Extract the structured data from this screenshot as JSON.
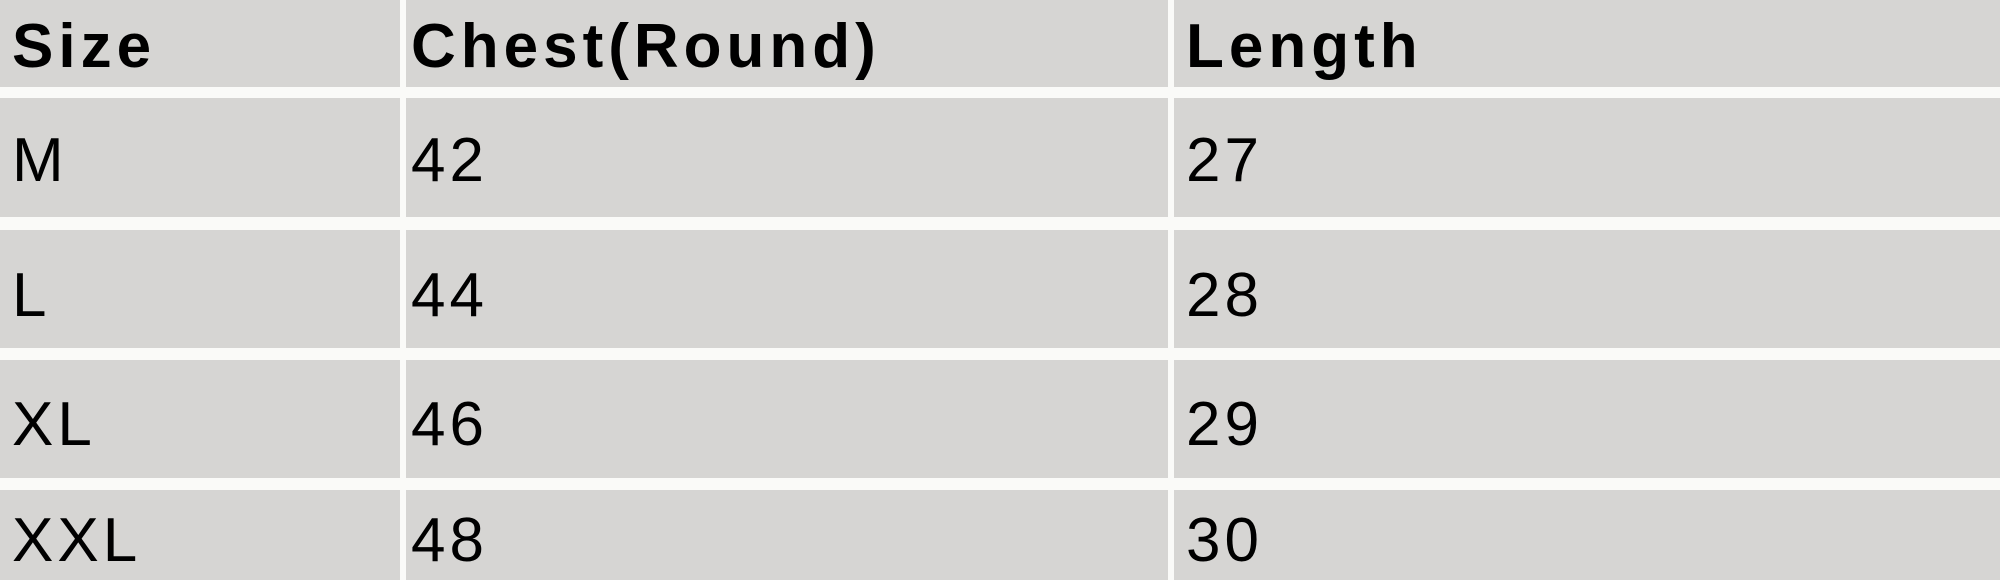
{
  "table": {
    "headers": [
      "Size",
      "Chest(Round)",
      "Length"
    ],
    "rows": [
      [
        "M",
        "42",
        "27"
      ],
      [
        "L",
        "44",
        "28"
      ],
      [
        "XL",
        "46",
        "29"
      ],
      [
        "XXL",
        "48",
        "30"
      ]
    ]
  },
  "colors": {
    "cell_background": "#d6d5d3",
    "grid_lines": "#fafaf8",
    "text": "#000000"
  }
}
